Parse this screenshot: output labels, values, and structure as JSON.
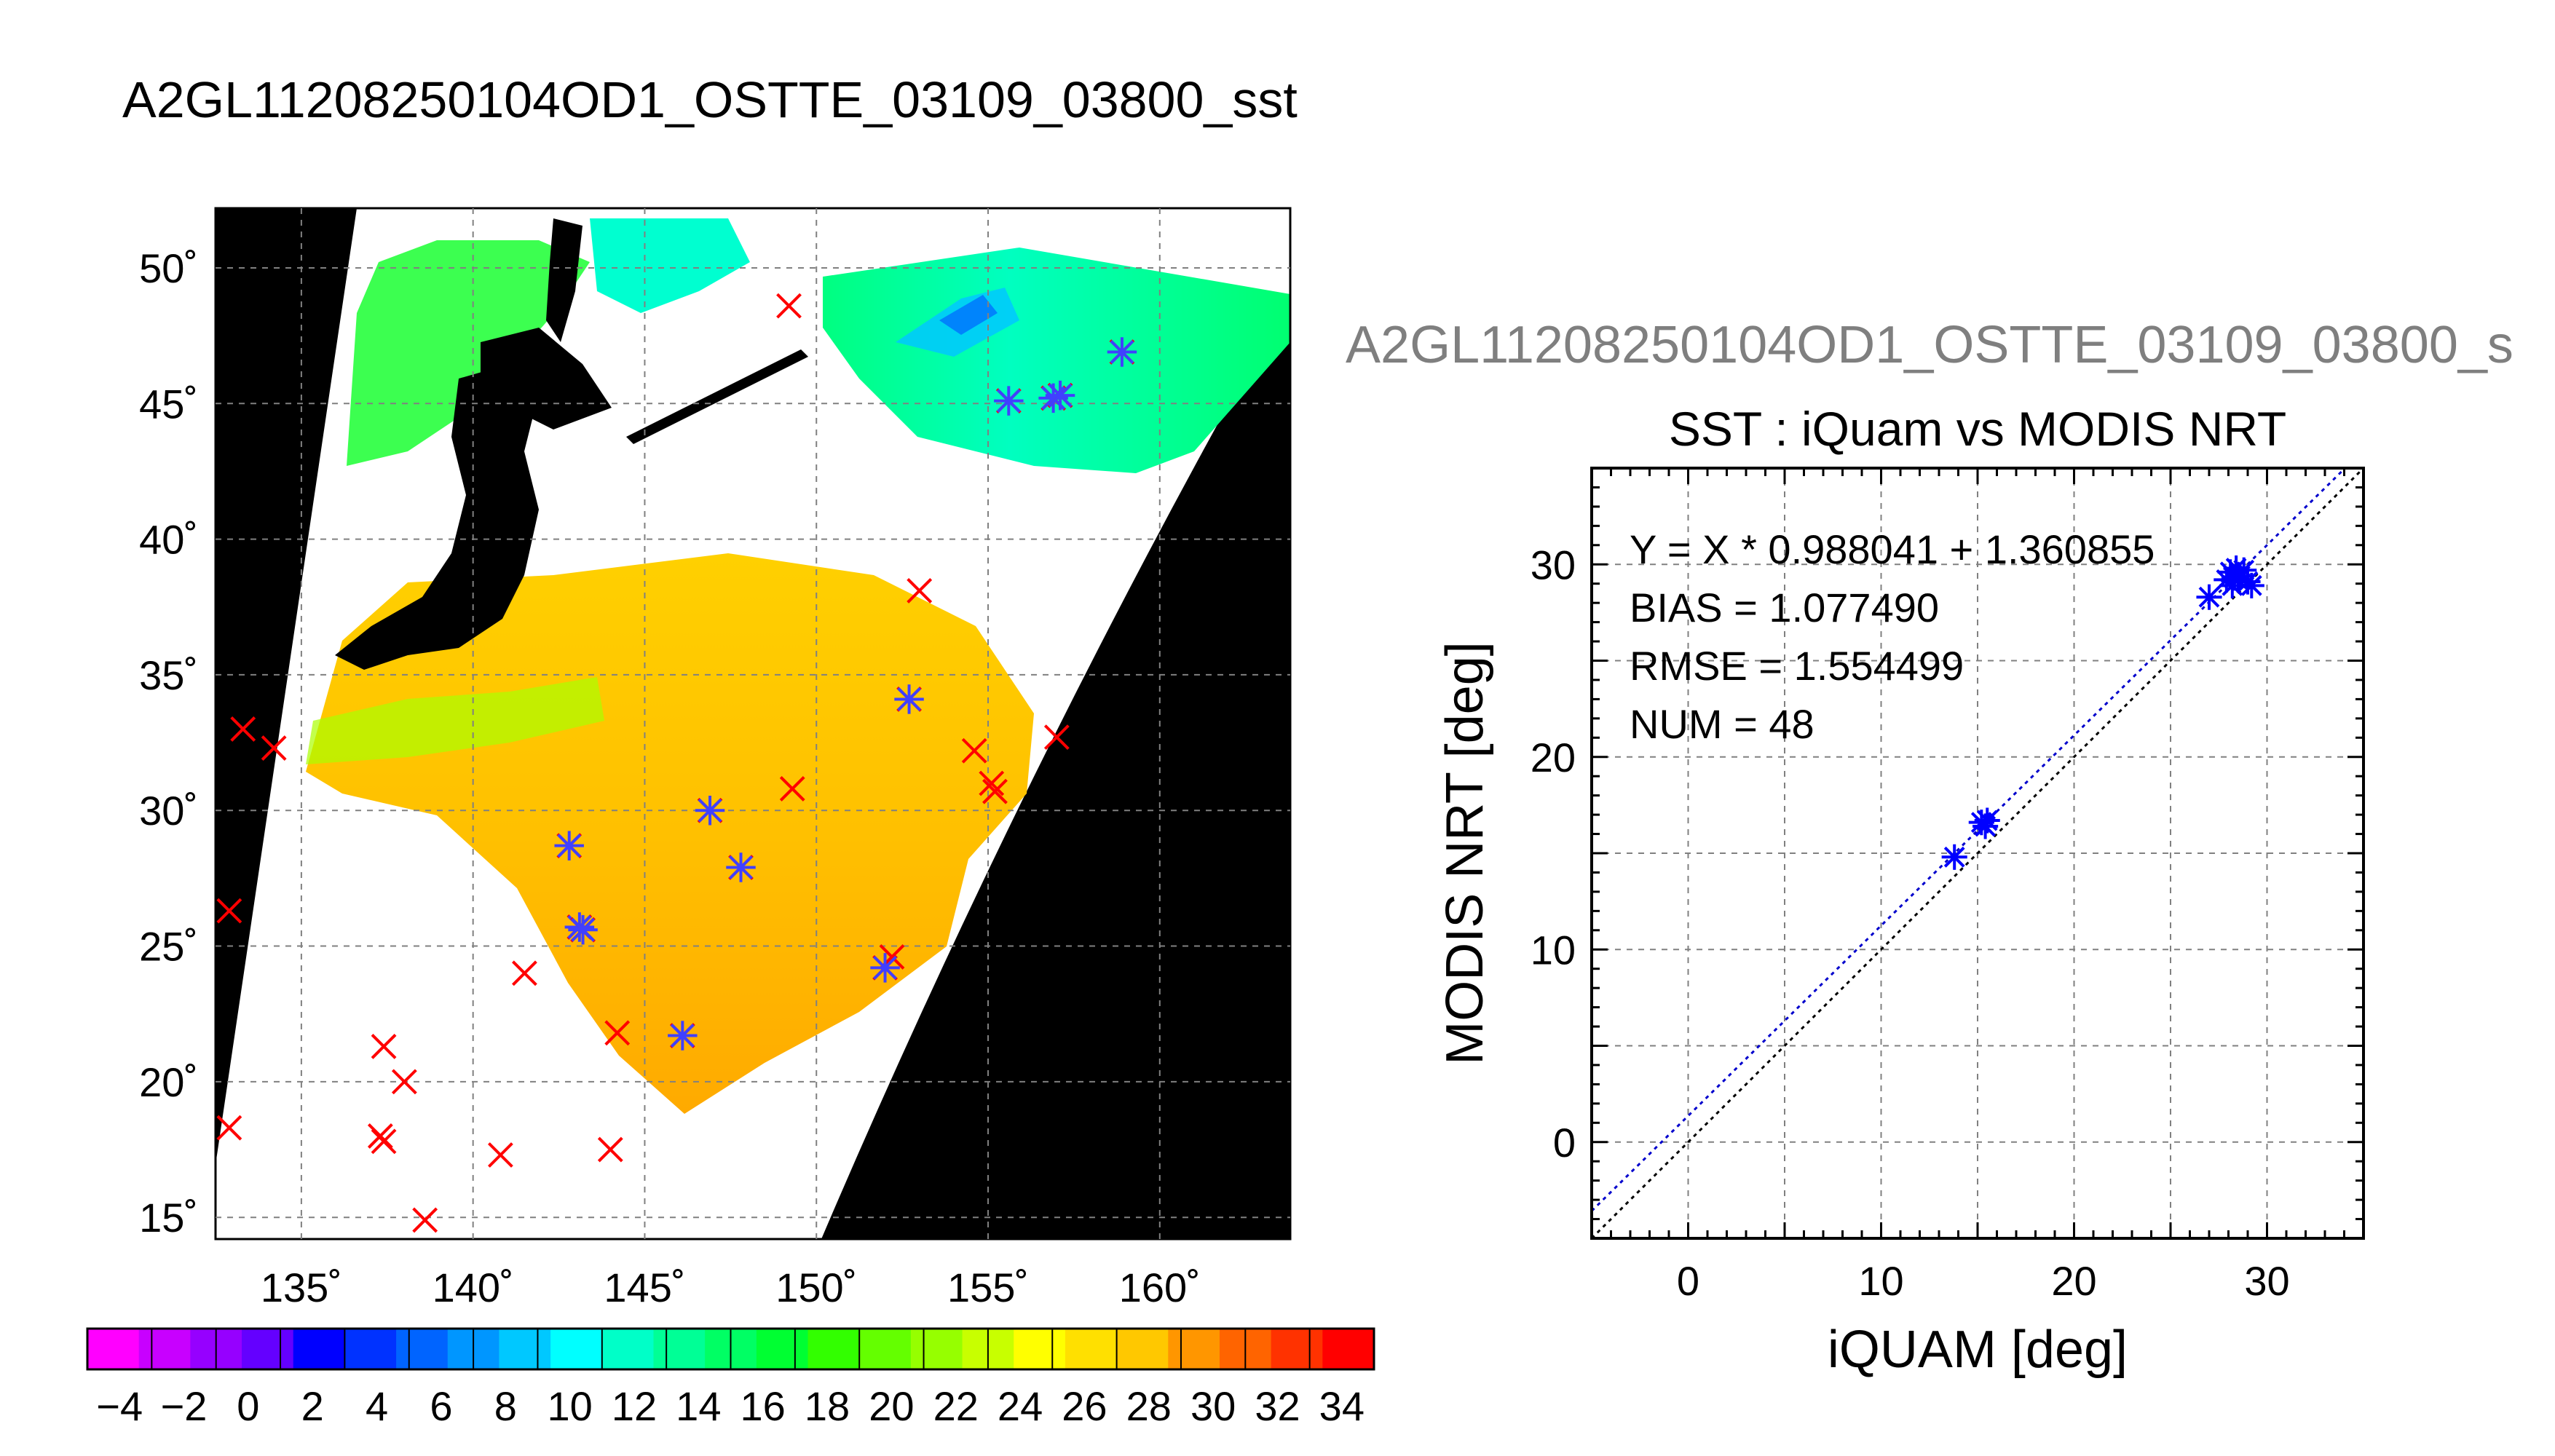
{
  "figure": {
    "main_title": "A2GL11208250104OD1_OSTTE_03109_03800_sst",
    "scatter_header": "A2GL11208250104OD1_OSTTE_03109_03800_s"
  },
  "chart_data": [
    {
      "type": "heatmap",
      "panel": "map",
      "xlabel": "",
      "ylabel": "",
      "xlim": [
        132.5,
        163.8
      ],
      "ylim": [
        14.2,
        52.2
      ],
      "x_ticks": [
        135,
        140,
        145,
        150,
        155,
        160
      ],
      "x_tick_labels": [
        "135˚",
        "140˚",
        "145˚",
        "150˚",
        "155˚",
        "160˚"
      ],
      "y_ticks": [
        15,
        20,
        25,
        30,
        35,
        40,
        45,
        50
      ],
      "y_tick_labels": [
        "15˚",
        "20˚",
        "25˚",
        "30˚",
        "35˚",
        "40˚",
        "45˚",
        "50˚"
      ],
      "grid": true,
      "colorbar": {
        "min": -5,
        "max": 35,
        "tick_values": [
          -4,
          -2,
          0,
          2,
          4,
          6,
          8,
          10,
          12,
          14,
          16,
          18,
          20,
          22,
          24,
          26,
          28,
          30,
          32,
          34
        ],
        "tick_labels": [
          "−4",
          "−2",
          "0",
          "2",
          "4",
          "6",
          "8",
          "10",
          "12",
          "14",
          "16",
          "18",
          "20",
          "22",
          "24",
          "26",
          "28",
          "30",
          "32",
          "34"
        ],
        "colors": [
          "#ff00ff",
          "#c800ff",
          "#9600ff",
          "#6400ff",
          "#0000ff",
          "#0032ff",
          "#0064ff",
          "#0096ff",
          "#00c8ff",
          "#00ffff",
          "#00ffc8",
          "#00ff96",
          "#00ff64",
          "#00ff32",
          "#32ff00",
          "#64ff00",
          "#96ff00",
          "#c8ff00",
          "#ffff00",
          "#ffe000",
          "#ffc800",
          "#ff9600",
          "#ff6400",
          "#ff3200",
          "#ff0000"
        ]
      },
      "buoys_red_x": [
        [
          149.2,
          48.6
        ],
        [
          133.3,
          33.0
        ],
        [
          134.2,
          32.3
        ],
        [
          132.9,
          26.3
        ],
        [
          137.4,
          21.3
        ],
        [
          138.0,
          20.0
        ],
        [
          137.3,
          18.0
        ],
        [
          137.4,
          17.8
        ],
        [
          132.9,
          18.3
        ],
        [
          138.6,
          14.9
        ],
        [
          140.8,
          17.3
        ],
        [
          144.0,
          17.5
        ],
        [
          144.2,
          21.8
        ],
        [
          141.5,
          24.0
        ],
        [
          152.2,
          24.6
        ],
        [
          154.6,
          32.2
        ],
        [
          155.1,
          31.0
        ],
        [
          155.2,
          30.7
        ],
        [
          157.0,
          32.7
        ],
        [
          153.0,
          38.1
        ],
        [
          149.3,
          30.8
        ]
      ],
      "buoys_star": [
        [
          158.9,
          46.9
        ],
        [
          155.6,
          45.1
        ],
        [
          156.9,
          45.2
        ],
        [
          157.1,
          45.3
        ],
        [
          152.7,
          34.1
        ],
        [
          146.9,
          30.0
        ],
        [
          147.8,
          27.9
        ],
        [
          142.8,
          28.7
        ],
        [
          143.1,
          25.7
        ],
        [
          143.2,
          25.6
        ],
        [
          146.1,
          21.7
        ],
        [
          152.0,
          24.2
        ]
      ]
    },
    {
      "type": "scatter",
      "panel": "scatter",
      "title": "SST : iQuam vs MODIS NRT",
      "xlabel": "iQUAM [deg]",
      "ylabel": "MODIS NRT [deg]",
      "xlim": [
        -5,
        35
      ],
      "ylim": [
        -5,
        35
      ],
      "x_ticks": [
        0,
        10,
        20,
        30
      ],
      "y_ticks": [
        0,
        10,
        20,
        30
      ],
      "grid": true,
      "fit": {
        "slope": 0.988041,
        "intercept": 1.360855
      },
      "stats": [
        "Y = X * 0.988041 + 1.360855",
        "BIAS = 1.077490",
        "RMSE = 1.554499",
        "NUM = 48"
      ],
      "series": [
        {
          "values": [
            [
              13.8,
              14.8
            ],
            [
              15.2,
              16.6
            ],
            [
              15.4,
              16.4
            ],
            [
              15.5,
              16.7
            ],
            [
              27.0,
              28.3
            ],
            [
              27.9,
              29.2
            ],
            [
              28.1,
              29.6
            ],
            [
              28.3,
              29.3
            ],
            [
              28.4,
              29.8
            ],
            [
              28.6,
              29.4
            ],
            [
              28.8,
              29.7
            ],
            [
              29.0,
              29.1
            ],
            [
              29.2,
              28.9
            ],
            [
              28.2,
              28.9
            ],
            [
              28.5,
              29.2
            ]
          ]
        }
      ],
      "colors": {
        "points": "#0000ff",
        "fit_line": "#0000cc",
        "identity_line": "#000000"
      }
    }
  ]
}
